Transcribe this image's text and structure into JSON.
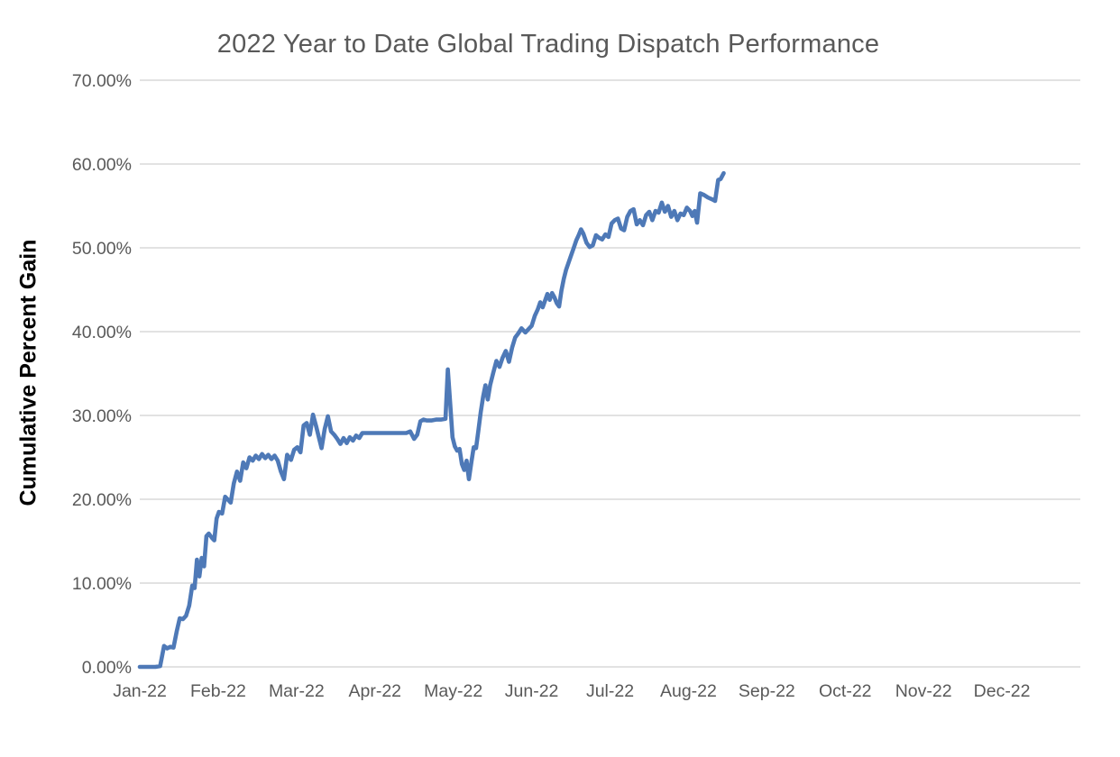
{
  "colors": {
    "background": "#ffffff",
    "grid": "#d9d9d9",
    "axis_text": "#595959",
    "title_text": "#595959",
    "axis_title_text": "#000000",
    "line": "#4e79b7"
  },
  "chart_data": {
    "type": "line",
    "title": "2022 Year to Date Global Trading Dispatch Performance",
    "ylabel": "Cumulative Percent Gain",
    "xlabel": "",
    "legend_position": "none",
    "grid": true,
    "ylim": [
      0,
      70
    ],
    "x_unit": "fractional month index, 0 = Jan-22 tick, values estimated from pixels",
    "categories": [
      "Jan-22",
      "Feb-22",
      "Mar-22",
      "Apr-22",
      "May-22",
      "Jun-22",
      "Jul-22",
      "Aug-22",
      "Sep-22",
      "Oct-22",
      "Nov-22",
      "Dec-22"
    ],
    "y_ticks": [
      {
        "v": 0,
        "label": "0.00%"
      },
      {
        "v": 10,
        "label": "10.00%"
      },
      {
        "v": 20,
        "label": "20.00%"
      },
      {
        "v": 30,
        "label": "30.00%"
      },
      {
        "v": 40,
        "label": "40.00%"
      },
      {
        "v": 50,
        "label": "50.00%"
      },
      {
        "v": 60,
        "label": "60.00%"
      },
      {
        "v": 70,
        "label": "70.00%"
      }
    ],
    "series": [
      {
        "name": "Cumulative Percent Gain",
        "color": "#4e79b7",
        "points": [
          [
            0.0,
            0
          ],
          [
            0.1,
            0
          ],
          [
            0.2,
            0
          ],
          [
            0.26,
            0.1
          ],
          [
            0.31,
            2.5
          ],
          [
            0.35,
            2.2
          ],
          [
            0.39,
            2.4
          ],
          [
            0.43,
            2.3
          ],
          [
            0.47,
            4.2
          ],
          [
            0.51,
            5.8
          ],
          [
            0.55,
            5.7
          ],
          [
            0.59,
            6.1
          ],
          [
            0.63,
            7.3
          ],
          [
            0.67,
            9.7
          ],
          [
            0.7,
            9.4
          ],
          [
            0.73,
            12.8
          ],
          [
            0.76,
            10.8
          ],
          [
            0.79,
            13.0
          ],
          [
            0.82,
            12.0
          ],
          [
            0.85,
            15.6
          ],
          [
            0.88,
            15.9
          ],
          [
            0.92,
            15.4
          ],
          [
            0.95,
            15.1
          ],
          [
            0.98,
            17.7
          ],
          [
            1.01,
            18.5
          ],
          [
            1.05,
            18.3
          ],
          [
            1.09,
            20.3
          ],
          [
            1.13,
            19.9
          ],
          [
            1.16,
            19.6
          ],
          [
            1.2,
            21.9
          ],
          [
            1.24,
            23.3
          ],
          [
            1.28,
            22.2
          ],
          [
            1.32,
            24.4
          ],
          [
            1.36,
            23.7
          ],
          [
            1.4,
            25.0
          ],
          [
            1.44,
            24.6
          ],
          [
            1.48,
            25.2
          ],
          [
            1.52,
            24.8
          ],
          [
            1.56,
            25.4
          ],
          [
            1.6,
            24.9
          ],
          [
            1.64,
            25.3
          ],
          [
            1.68,
            24.8
          ],
          [
            1.72,
            25.2
          ],
          [
            1.76,
            24.6
          ],
          [
            1.8,
            23.3
          ],
          [
            1.84,
            22.4
          ],
          [
            1.88,
            25.3
          ],
          [
            1.93,
            24.7
          ],
          [
            1.97,
            25.9
          ],
          [
            2.01,
            26.2
          ],
          [
            2.05,
            25.6
          ],
          [
            2.09,
            28.8
          ],
          [
            2.13,
            29.1
          ],
          [
            2.17,
            27.7
          ],
          [
            2.21,
            30.1
          ],
          [
            2.25,
            28.7
          ],
          [
            2.29,
            27.2
          ],
          [
            2.32,
            26.1
          ],
          [
            2.36,
            28.4
          ],
          [
            2.4,
            29.9
          ],
          [
            2.44,
            28.1
          ],
          [
            2.48,
            27.7
          ],
          [
            2.52,
            27.2
          ],
          [
            2.56,
            26.6
          ],
          [
            2.6,
            27.3
          ],
          [
            2.64,
            26.7
          ],
          [
            2.68,
            27.4
          ],
          [
            2.72,
            27.0
          ],
          [
            2.76,
            27.6
          ],
          [
            2.8,
            27.3
          ],
          [
            2.84,
            27.9
          ],
          [
            2.9,
            27.9
          ],
          [
            3.0,
            27.9
          ],
          [
            3.1,
            27.9
          ],
          [
            3.2,
            27.9
          ],
          [
            3.3,
            27.9
          ],
          [
            3.4,
            27.9
          ],
          [
            3.45,
            28.1
          ],
          [
            3.5,
            27.2
          ],
          [
            3.54,
            27.7
          ],
          [
            3.58,
            29.3
          ],
          [
            3.62,
            29.5
          ],
          [
            3.66,
            29.4
          ],
          [
            3.72,
            29.4
          ],
          [
            3.78,
            29.5
          ],
          [
            3.84,
            29.5
          ],
          [
            3.9,
            29.6
          ],
          [
            3.93,
            35.5
          ],
          [
            3.96,
            31.5
          ],
          [
            3.99,
            27.4
          ],
          [
            4.02,
            26.3
          ],
          [
            4.05,
            25.8
          ],
          [
            4.08,
            26.0
          ],
          [
            4.11,
            24.2
          ],
          [
            4.14,
            23.5
          ],
          [
            4.17,
            24.6
          ],
          [
            4.2,
            22.4
          ],
          [
            4.23,
            24.4
          ],
          [
            4.26,
            26.2
          ],
          [
            4.29,
            26.1
          ],
          [
            4.32,
            28.2
          ],
          [
            4.35,
            30.4
          ],
          [
            4.38,
            32.2
          ],
          [
            4.41,
            33.6
          ],
          [
            4.44,
            31.9
          ],
          [
            4.47,
            33.6
          ],
          [
            4.51,
            35.1
          ],
          [
            4.55,
            36.5
          ],
          [
            4.59,
            35.8
          ],
          [
            4.63,
            36.9
          ],
          [
            4.67,
            37.7
          ],
          [
            4.71,
            36.4
          ],
          [
            4.75,
            38.1
          ],
          [
            4.79,
            39.3
          ],
          [
            4.83,
            39.8
          ],
          [
            4.87,
            40.4
          ],
          [
            4.92,
            39.9
          ],
          [
            4.96,
            40.3
          ],
          [
            5.0,
            40.7
          ],
          [
            5.04,
            41.9
          ],
          [
            5.08,
            42.7
          ],
          [
            5.11,
            43.5
          ],
          [
            5.14,
            42.9
          ],
          [
            5.17,
            43.7
          ],
          [
            5.2,
            44.5
          ],
          [
            5.23,
            43.8
          ],
          [
            5.26,
            44.6
          ],
          [
            5.29,
            44.1
          ],
          [
            5.32,
            43.4
          ],
          [
            5.35,
            43.0
          ],
          [
            5.38,
            44.9
          ],
          [
            5.41,
            46.3
          ],
          [
            5.44,
            47.4
          ],
          [
            5.47,
            48.2
          ],
          [
            5.5,
            49.0
          ],
          [
            5.53,
            49.8
          ],
          [
            5.57,
            50.9
          ],
          [
            5.6,
            51.5
          ],
          [
            5.63,
            52.2
          ],
          [
            5.66,
            51.7
          ],
          [
            5.7,
            50.6
          ],
          [
            5.74,
            50.1
          ],
          [
            5.78,
            50.3
          ],
          [
            5.82,
            51.5
          ],
          [
            5.86,
            51.2
          ],
          [
            5.9,
            51.0
          ],
          [
            5.94,
            51.6
          ],
          [
            5.98,
            51.3
          ],
          [
            6.02,
            52.9
          ],
          [
            6.06,
            53.3
          ],
          [
            6.1,
            53.5
          ],
          [
            6.14,
            52.3
          ],
          [
            6.18,
            52.1
          ],
          [
            6.22,
            53.7
          ],
          [
            6.26,
            54.4
          ],
          [
            6.3,
            54.6
          ],
          [
            6.34,
            52.8
          ],
          [
            6.38,
            53.3
          ],
          [
            6.42,
            52.7
          ],
          [
            6.46,
            53.9
          ],
          [
            6.5,
            54.3
          ],
          [
            6.54,
            53.3
          ],
          [
            6.58,
            54.4
          ],
          [
            6.62,
            54.2
          ],
          [
            6.66,
            55.4
          ],
          [
            6.7,
            54.3
          ],
          [
            6.74,
            55.0
          ],
          [
            6.78,
            53.7
          ],
          [
            6.82,
            54.4
          ],
          [
            6.86,
            53.3
          ],
          [
            6.9,
            54.1
          ],
          [
            6.94,
            53.9
          ],
          [
            6.98,
            54.8
          ],
          [
            7.02,
            54.4
          ],
          [
            7.05,
            53.8
          ],
          [
            7.08,
            54.4
          ],
          [
            7.11,
            53.0
          ],
          [
            7.15,
            56.5
          ],
          [
            7.2,
            56.3
          ],
          [
            7.25,
            56.0
          ],
          [
            7.3,
            55.8
          ],
          [
            7.34,
            55.6
          ],
          [
            7.38,
            58.1
          ],
          [
            7.41,
            58.2
          ],
          [
            7.45,
            58.9
          ]
        ]
      }
    ]
  }
}
